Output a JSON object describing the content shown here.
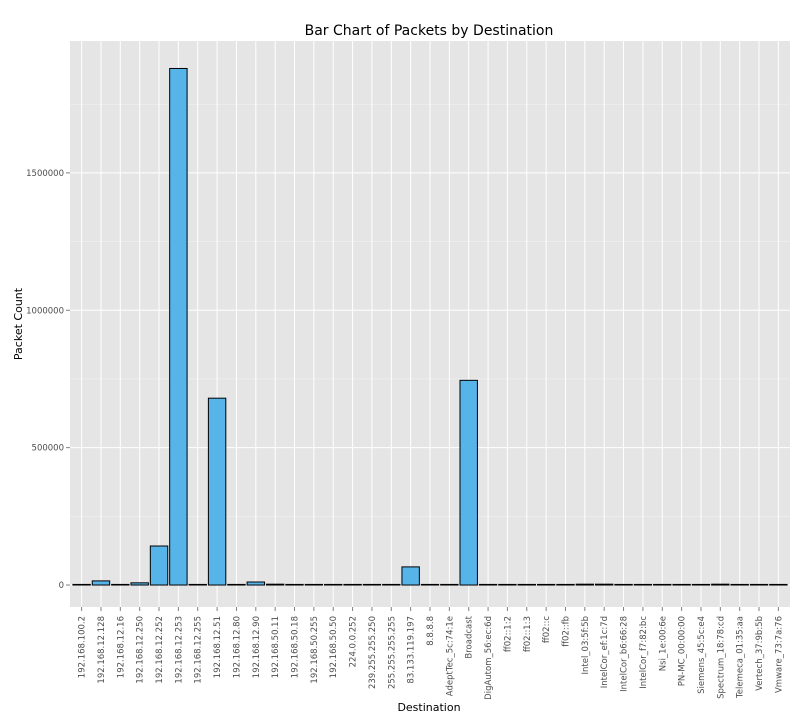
{
  "chart_data": {
    "type": "bar",
    "title": "Bar Chart of Packets by Destination",
    "xlabel": "Destination",
    "ylabel": "Packet Count",
    "ylim": [
      -80000,
      1980000
    ],
    "yticks": [
      0,
      500000,
      1000000,
      1500000
    ],
    "ytick_labels": [
      "0",
      "500000",
      "1000000",
      "1500000"
    ],
    "grid": true,
    "bar_color": "#56B4E9",
    "panel_background": "#E5E5E5",
    "categories": [
      "192.168.100.2",
      "192.168.12.128",
      "192.168.12.16",
      "192.168.12.250",
      "192.168.12.252",
      "192.168.12.253",
      "192.168.12.255",
      "192.168.12.51",
      "192.168.12.80",
      "192.168.12.90",
      "192.168.50.11",
      "192.168.50.18",
      "192.168.50.255",
      "192.168.50.50",
      "224.0.0.252",
      "239.255.255.250",
      "255.255.255.255",
      "83.133.119.197",
      "8.8.8.8",
      "AdeptTec_5c:74:1e",
      "Broadcast",
      "DigAutom_56:ec:6d",
      "ff02::1:2",
      "ff02::1:3",
      "ff02::c",
      "ff02::fb",
      "Intel_03:5f:5b",
      "IntelCor_ef:1c:7d",
      "IntelCor_b6:66:28",
      "IntelCor_f7:82:bc",
      "Nsi_1e:00:6e",
      "PN-MC_00:00:00",
      "Siemens_45:5c:e4",
      "Spectrum_18:78:cd",
      "Telemeca_01:35:aa",
      "Vertech_37:9b:5b",
      "Vmware_73:7a:76"
    ],
    "values": [
      2000,
      15000,
      1000,
      8000,
      142000,
      1880000,
      1500,
      680000,
      1000,
      11000,
      3000,
      2000,
      1500,
      1000,
      500,
      500,
      1500,
      66000,
      1000,
      1000,
      745000,
      1000,
      500,
      500,
      500,
      500,
      3000,
      3000,
      1000,
      1000,
      2000,
      1000,
      1000,
      3000,
      1000,
      1000,
      1000
    ]
  }
}
